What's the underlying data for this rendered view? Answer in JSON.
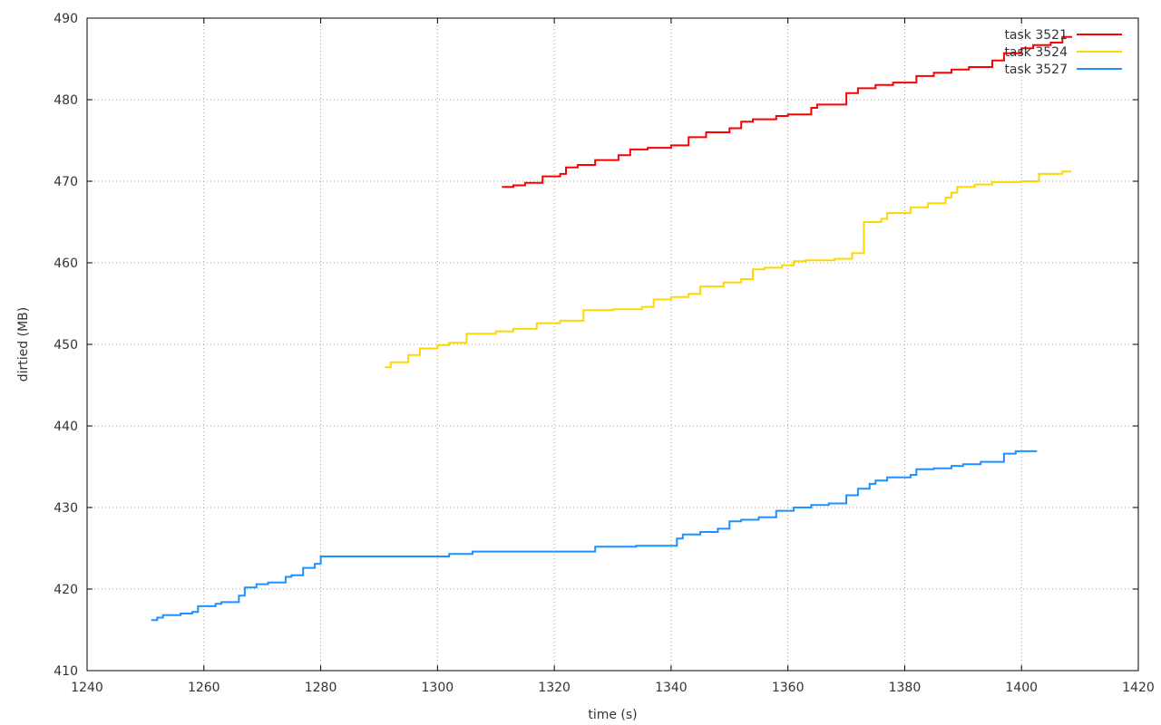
{
  "chart_data": {
    "type": "line",
    "title": "",
    "xlabel": "time (s)",
    "ylabel": "dirtied (MB)",
    "xlim": [
      1240,
      1420
    ],
    "ylim": [
      410,
      490
    ],
    "xticks": [
      1240,
      1260,
      1280,
      1300,
      1320,
      1340,
      1360,
      1380,
      1400,
      1420
    ],
    "yticks": [
      410,
      420,
      430,
      440,
      450,
      460,
      470,
      480,
      490
    ],
    "grid": true,
    "legend_position": "top-right",
    "step": true,
    "series": [
      {
        "name": "task 3521",
        "color": "#ff0000",
        "points": [
          [
            1311,
            469.3
          ],
          [
            1313,
            469.5
          ],
          [
            1315,
            469.8
          ],
          [
            1318,
            470.6
          ],
          [
            1321,
            470.9
          ],
          [
            1322,
            471.7
          ],
          [
            1324,
            472.0
          ],
          [
            1327,
            472.6
          ],
          [
            1331,
            473.2
          ],
          [
            1333,
            473.9
          ],
          [
            1336,
            474.1
          ],
          [
            1340,
            474.4
          ],
          [
            1343,
            475.4
          ],
          [
            1346,
            476.0
          ],
          [
            1350,
            476.5
          ],
          [
            1352,
            477.3
          ],
          [
            1354,
            477.6
          ],
          [
            1358,
            478.0
          ],
          [
            1360,
            478.2
          ],
          [
            1364,
            479.0
          ],
          [
            1365,
            479.4
          ],
          [
            1370,
            480.8
          ],
          [
            1372,
            481.4
          ],
          [
            1375,
            481.8
          ],
          [
            1378,
            482.1
          ],
          [
            1382,
            482.9
          ],
          [
            1385,
            483.3
          ],
          [
            1388,
            483.7
          ],
          [
            1391,
            484.0
          ],
          [
            1395,
            484.8
          ],
          [
            1397,
            485.7
          ],
          [
            1400,
            486.3
          ],
          [
            1402,
            486.7
          ],
          [
            1405,
            487.0
          ],
          [
            1407,
            487.7
          ],
          [
            1408.5,
            487.8
          ]
        ]
      },
      {
        "name": "task 3524",
        "color": "#ffd700",
        "points": [
          [
            1291,
            447.2
          ],
          [
            1292,
            447.8
          ],
          [
            1295,
            448.7
          ],
          [
            1297,
            449.5
          ],
          [
            1300,
            449.9
          ],
          [
            1302,
            450.2
          ],
          [
            1305,
            451.3
          ],
          [
            1310,
            451.6
          ],
          [
            1313,
            451.9
          ],
          [
            1317,
            452.6
          ],
          [
            1321,
            452.9
          ],
          [
            1325,
            454.2
          ],
          [
            1330,
            454.3
          ],
          [
            1335,
            454.6
          ],
          [
            1337,
            455.5
          ],
          [
            1340,
            455.8
          ],
          [
            1343,
            456.2
          ],
          [
            1345,
            457.1
          ],
          [
            1349,
            457.6
          ],
          [
            1352,
            458.0
          ],
          [
            1354,
            459.2
          ],
          [
            1356,
            459.4
          ],
          [
            1359,
            459.7
          ],
          [
            1361,
            460.2
          ],
          [
            1363,
            460.3
          ],
          [
            1368,
            460.5
          ],
          [
            1371,
            461.2
          ],
          [
            1373,
            465.0
          ],
          [
            1376,
            465.4
          ],
          [
            1377,
            466.1
          ],
          [
            1381,
            466.8
          ],
          [
            1384,
            467.3
          ],
          [
            1387,
            468.0
          ],
          [
            1388,
            468.6
          ],
          [
            1389,
            469.3
          ],
          [
            1392,
            469.6
          ],
          [
            1395,
            469.9
          ],
          [
            1400,
            470.0
          ],
          [
            1403,
            470.9
          ],
          [
            1407,
            471.2
          ],
          [
            1408.5,
            471.2
          ]
        ]
      },
      {
        "name": "task 3527",
        "color": "#1e90ff",
        "points": [
          [
            1251,
            416.2
          ],
          [
            1252,
            416.5
          ],
          [
            1253,
            416.8
          ],
          [
            1256,
            417.0
          ],
          [
            1258,
            417.2
          ],
          [
            1259,
            417.9
          ],
          [
            1262,
            418.2
          ],
          [
            1263,
            418.4
          ],
          [
            1266,
            419.2
          ],
          [
            1267,
            420.2
          ],
          [
            1269,
            420.6
          ],
          [
            1271,
            420.8
          ],
          [
            1274,
            421.5
          ],
          [
            1275,
            421.7
          ],
          [
            1277,
            422.6
          ],
          [
            1279,
            423.1
          ],
          [
            1280,
            424.0
          ],
          [
            1300,
            424.0
          ],
          [
            1302,
            424.3
          ],
          [
            1306,
            424.6
          ],
          [
            1327,
            425.2
          ],
          [
            1334,
            425.3
          ],
          [
            1341,
            426.2
          ],
          [
            1342,
            426.7
          ],
          [
            1345,
            427.0
          ],
          [
            1348,
            427.4
          ],
          [
            1350,
            428.3
          ],
          [
            1352,
            428.5
          ],
          [
            1355,
            428.8
          ],
          [
            1358,
            429.6
          ],
          [
            1361,
            430.0
          ],
          [
            1364,
            430.3
          ],
          [
            1367,
            430.5
          ],
          [
            1370,
            431.5
          ],
          [
            1372,
            432.3
          ],
          [
            1374,
            432.9
          ],
          [
            1375,
            433.3
          ],
          [
            1377,
            433.7
          ],
          [
            1381,
            434.0
          ],
          [
            1382,
            434.7
          ],
          [
            1385,
            434.8
          ],
          [
            1388,
            435.1
          ],
          [
            1390,
            435.3
          ],
          [
            1393,
            435.6
          ],
          [
            1397,
            436.6
          ],
          [
            1399,
            436.9
          ],
          [
            1402.5,
            437.0
          ]
        ]
      }
    ]
  }
}
